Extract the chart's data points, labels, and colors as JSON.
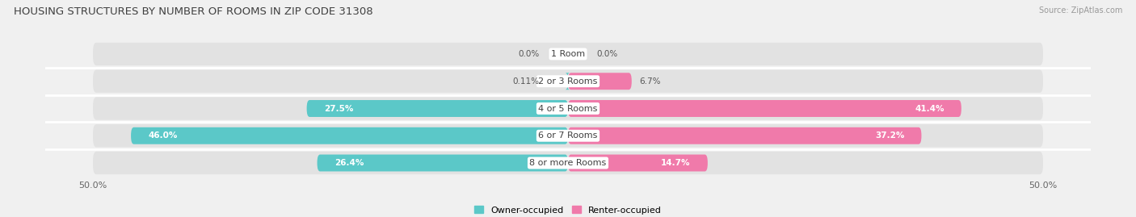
{
  "title": "HOUSING STRUCTURES BY NUMBER OF ROOMS IN ZIP CODE 31308",
  "source": "Source: ZipAtlas.com",
  "categories": [
    "1 Room",
    "2 or 3 Rooms",
    "4 or 5 Rooms",
    "6 or 7 Rooms",
    "8 or more Rooms"
  ],
  "owner_values": [
    0.0,
    0.11,
    27.5,
    46.0,
    26.4
  ],
  "renter_values": [
    0.0,
    6.7,
    41.4,
    37.2,
    14.7
  ],
  "owner_label_values": [
    "0.0%",
    "0.11%",
    "27.5%",
    "46.0%",
    "26.4%"
  ],
  "renter_label_values": [
    "0.0%",
    "6.7%",
    "41.4%",
    "37.2%",
    "14.7%"
  ],
  "owner_color": "#5BC8C8",
  "renter_color": "#F07AAA",
  "owner_label": "Owner-occupied",
  "renter_label": "Renter-occupied",
  "bg_color": "#f0f0f0",
  "row_bg_color": "#e2e2e2",
  "row_sep_color": "#ffffff",
  "title_fontsize": 9.5,
  "source_fontsize": 7,
  "value_fontsize": 7.5,
  "category_fontsize": 8,
  "legend_fontsize": 8,
  "axis_fontsize": 8
}
